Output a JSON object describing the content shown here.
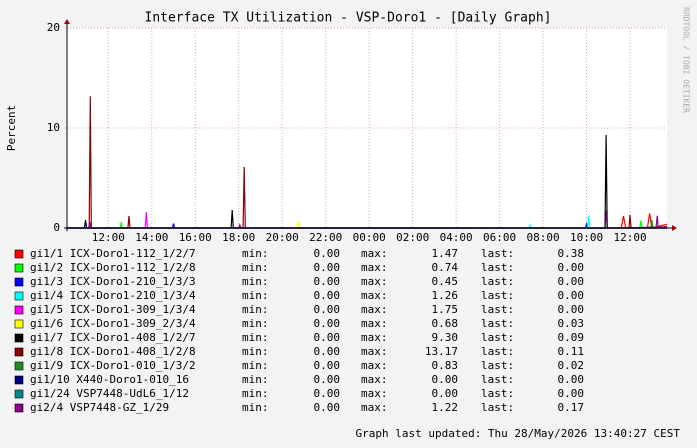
{
  "chart_data": {
    "type": "line",
    "title": "Interface TX Utilization - VSP-Doro1 - [Daily Graph]",
    "y_label": "Percent",
    "watermark": "RRDTOOL / TOBI OETIKER",
    "footer": "Graph last updated: Thu 28/May/2026 13:40:27 CEST",
    "stat_labels": [
      "min:",
      "max:",
      "last:"
    ],
    "xlim": [
      -1.9,
      25.7
    ],
    "ylim": [
      0,
      20
    ],
    "yticks": [
      0,
      10,
      20
    ],
    "grid": true,
    "xticks": [
      {
        "value": 0,
        "label": "12:00"
      },
      {
        "value": 2,
        "label": "14:00"
      },
      {
        "value": 4,
        "label": "16:00"
      },
      {
        "value": 6,
        "label": "18:00"
      },
      {
        "value": 8,
        "label": "20:00"
      },
      {
        "value": 10,
        "label": "22:00"
      },
      {
        "value": 12,
        "label": "00:00"
      },
      {
        "value": 14,
        "label": "02:00"
      },
      {
        "value": 16,
        "label": "04:00"
      },
      {
        "value": 18,
        "label": "06:00"
      },
      {
        "value": 20,
        "label": "08:00"
      },
      {
        "value": 22,
        "label": "10:00"
      },
      {
        "value": 24,
        "label": "12:00"
      }
    ],
    "series": [
      {
        "name": "gi1/1 ICX-Doro1-112_1/2/7",
        "color": "#ff0000",
        "min": "0.00",
        "max": "1.47",
        "last": "0.38",
        "x": [
          -1.9,
          23.6,
          23.7,
          23.8,
          24.8,
          24.9,
          25.0,
          25.7
        ],
        "values": [
          0,
          0,
          1.2,
          0,
          0,
          1.47,
          0,
          0.38
        ]
      },
      {
        "name": "gi1/2 ICX-Doro1-112_1/2/8",
        "color": "#00ff00",
        "min": "0.00",
        "max": "0.74",
        "last": "0.00",
        "x": [
          -1.9,
          0.55,
          0.6,
          0.65,
          24.45,
          24.5,
          24.55,
          25.7
        ],
        "values": [
          0,
          0,
          0.6,
          0,
          0,
          0.74,
          0,
          0
        ]
      },
      {
        "name": "gi1/3 ICX-Doro1-210_1/3/3",
        "color": "#0000ff",
        "min": "0.00",
        "max": "0.45",
        "last": "0.00",
        "x": [
          -1.9,
          2.95,
          3.0,
          3.05,
          21.95,
          22.0,
          22.05,
          25.7
        ],
        "values": [
          0,
          0,
          0.45,
          0,
          0,
          0.4,
          0,
          0
        ]
      },
      {
        "name": "gi1/4 ICX-Doro1-210_1/3/4",
        "color": "#00ffff",
        "min": "0.00",
        "max": "1.26",
        "last": "0.00",
        "x": [
          -1.9,
          19.35,
          19.4,
          19.45,
          22.05,
          22.1,
          22.15,
          25.7
        ],
        "values": [
          0,
          0,
          0.3,
          0,
          0,
          1.26,
          0,
          0
        ]
      },
      {
        "name": "gi1/5 ICX-Doro1-309_1/3/4",
        "color": "#ff00ff",
        "min": "0.00",
        "max": "1.75",
        "last": "0.00",
        "x": [
          -1.9,
          1.7,
          1.75,
          1.8,
          22.85,
          22.9,
          22.95,
          25.7
        ],
        "values": [
          0,
          0,
          1.6,
          0,
          0,
          1.75,
          0,
          0
        ]
      },
      {
        "name": "gi1/6 ICX-Doro1-309_2/3/4",
        "color": "#ffff00",
        "min": "0.00",
        "max": "0.68",
        "last": "0.03",
        "x": [
          -1.9,
          8.7,
          8.75,
          8.8,
          25.7
        ],
        "values": [
          0,
          0,
          0.68,
          0,
          0.03
        ]
      },
      {
        "name": "gi1/7 ICX-Doro1-408_1/2/7",
        "color": "#000000",
        "min": "0.00",
        "max": "9.30",
        "last": "0.09",
        "x": [
          -1.9,
          -1.1,
          -1.05,
          -1.0,
          5.65,
          5.7,
          5.75,
          22.85,
          22.9,
          22.95,
          25.7
        ],
        "values": [
          0,
          0,
          0.8,
          0,
          0,
          1.8,
          0,
          0,
          9.3,
          0,
          0.09
        ]
      },
      {
        "name": "gi1/8 ICX-Doro1-408_1/2/8",
        "color": "#8b0000",
        "min": "0.00",
        "max": "13.17",
        "last": "0.11",
        "x": [
          -1.9,
          -0.88,
          -0.83,
          -0.78,
          0.9,
          0.95,
          1.0,
          6.2,
          6.25,
          6.3,
          23.95,
          24.0,
          24.05,
          25.7
        ],
        "values": [
          0,
          0,
          13.17,
          0,
          0,
          1.2,
          0,
          0,
          6.1,
          0,
          0,
          1.3,
          0,
          0.11
        ]
      },
      {
        "name": "gi1/9 ICX-Doro1-010_1/3/2",
        "color": "#228b22",
        "min": "0.00",
        "max": "0.83",
        "last": "0.02",
        "x": [
          -1.9,
          24.95,
          25.0,
          25.05,
          25.7
        ],
        "values": [
          0,
          0,
          0.83,
          0,
          0.02
        ]
      },
      {
        "name": "gi1/10 X440-Doro1-010_16",
        "color": "#000080",
        "min": "0.00",
        "max": "0.00",
        "last": "0.00",
        "x": [
          -1.9,
          25.7
        ],
        "values": [
          0,
          0
        ]
      },
      {
        "name": "gi1/24 VSP7448-UdL6_1/12",
        "color": "#008b8b",
        "min": "0.00",
        "max": "0.00",
        "last": "0.00",
        "x": [
          -1.9,
          25.7
        ],
        "values": [
          0,
          0
        ]
      },
      {
        "name": "gi2/4 VSP7448-GZ_1/29",
        "color": "#8b008b",
        "min": "0.00",
        "max": "1.22",
        "last": "0.17",
        "x": [
          -1.9,
          -0.9,
          -0.85,
          -0.8,
          6.0,
          6.05,
          6.1,
          25.2,
          25.25,
          25.3,
          25.7
        ],
        "values": [
          0,
          0,
          0.6,
          0,
          0,
          0.3,
          0,
          0,
          1.22,
          0,
          0.17
        ]
      }
    ]
  }
}
